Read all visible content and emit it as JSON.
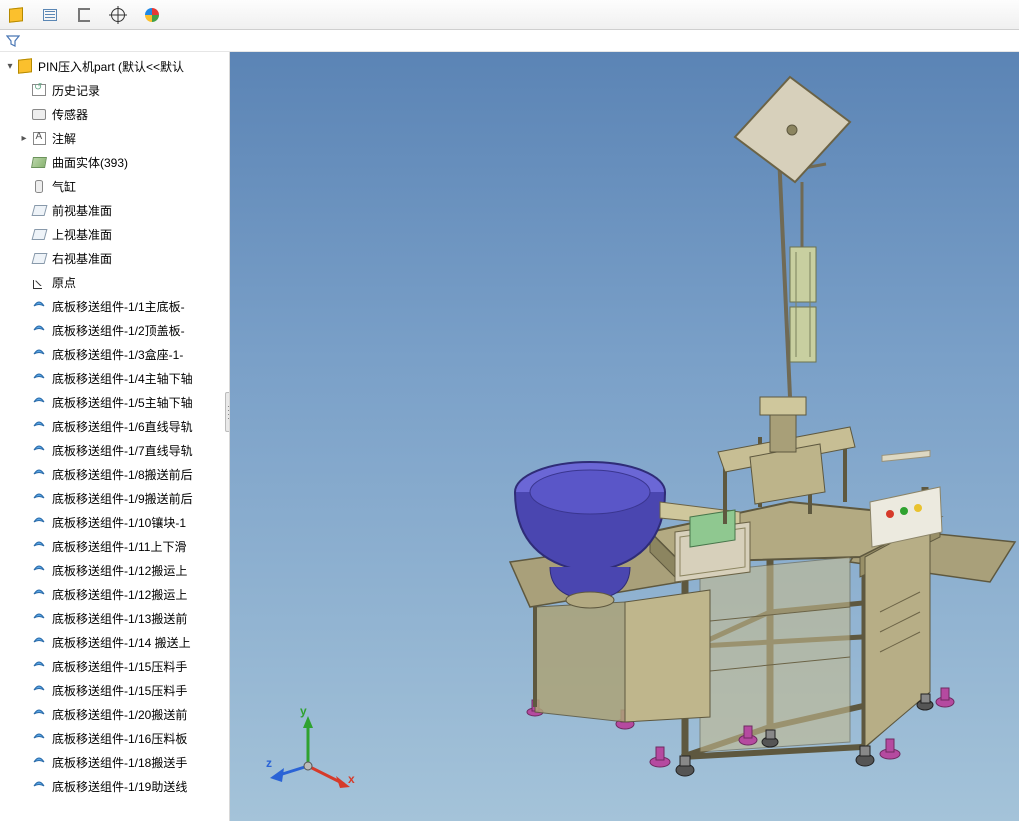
{
  "toolbar": {
    "icons": [
      "cube",
      "list",
      "bracket",
      "target",
      "colorball"
    ]
  },
  "root": {
    "label": "PIN压入机part  (默认<<默认",
    "expander": "▾"
  },
  "top_nodes": [
    {
      "icon": "history",
      "label": "历史记录",
      "expander": ""
    },
    {
      "icon": "sensor",
      "label": "传感器",
      "expander": ""
    },
    {
      "icon": "annot",
      "label": "注解",
      "expander": "▸"
    },
    {
      "icon": "surface",
      "label": "曲面实体(393)",
      "expander": ""
    },
    {
      "icon": "cyl",
      "label": "气缸",
      "expander": ""
    },
    {
      "icon": "plane",
      "label": "前视基准面",
      "expander": ""
    },
    {
      "icon": "plane",
      "label": "上视基准面",
      "expander": ""
    },
    {
      "icon": "plane",
      "label": "右视基准面",
      "expander": ""
    },
    {
      "icon": "origin",
      "label": "原点",
      "expander": ""
    }
  ],
  "parts": [
    "底板移送组件-1/1主底板-",
    "底板移送组件-1/2顶盖板-",
    "底板移送组件-1/3盒座-1-",
    "底板移送组件-1/4主轴下轴",
    "底板移送组件-1/5主轴下轴",
    "底板移送组件-1/6直线导轨",
    "底板移送组件-1/7直线导轨",
    "底板移送组件-1/8搬送前后",
    "底板移送组件-1/9搬送前后",
    "底板移送组件-1/10镶块-1",
    "底板移送组件-1/11上下滑",
    "底板移送组件-1/12搬运上",
    "底板移送组件-1/12搬运上",
    "底板移送组件-1/13搬送前",
    "底板移送组件-1/14 搬送上",
    "底板移送组件-1/15压料手",
    "底板移送组件-1/15压料手",
    "底板移送组件-1/20搬送前",
    "底板移送组件-1/16压料板",
    "底板移送组件-1/18搬送手",
    "底板移送组件-1/19助送线"
  ],
  "triad": {
    "x": "x",
    "y": "y",
    "z": "z",
    "x_color": "#d63a2a",
    "y_color": "#2fa22f",
    "z_color": "#2a63d6"
  },
  "viewport": {
    "bg_top": "#5b84b5",
    "bg_mid": "#7aa0c8",
    "bg_bot": "#a4c3d9"
  },
  "model": {
    "frame_color": "#a9a07a",
    "frame_edge": "#5e583f",
    "bowl_color": "#4a46b0",
    "bowl_inner": "#6b67d6",
    "panel_color": "#e9e6c8",
    "foot_color": "#b54aa0",
    "caster_color": "#555555",
    "pole_color": "#706a55",
    "plate_color": "#d7d0bb",
    "bracket_color": "#8fa890",
    "control_bg": "#eceadf",
    "button_colors": [
      "#d63a2a",
      "#2fa22f",
      "#e9c22e"
    ]
  }
}
